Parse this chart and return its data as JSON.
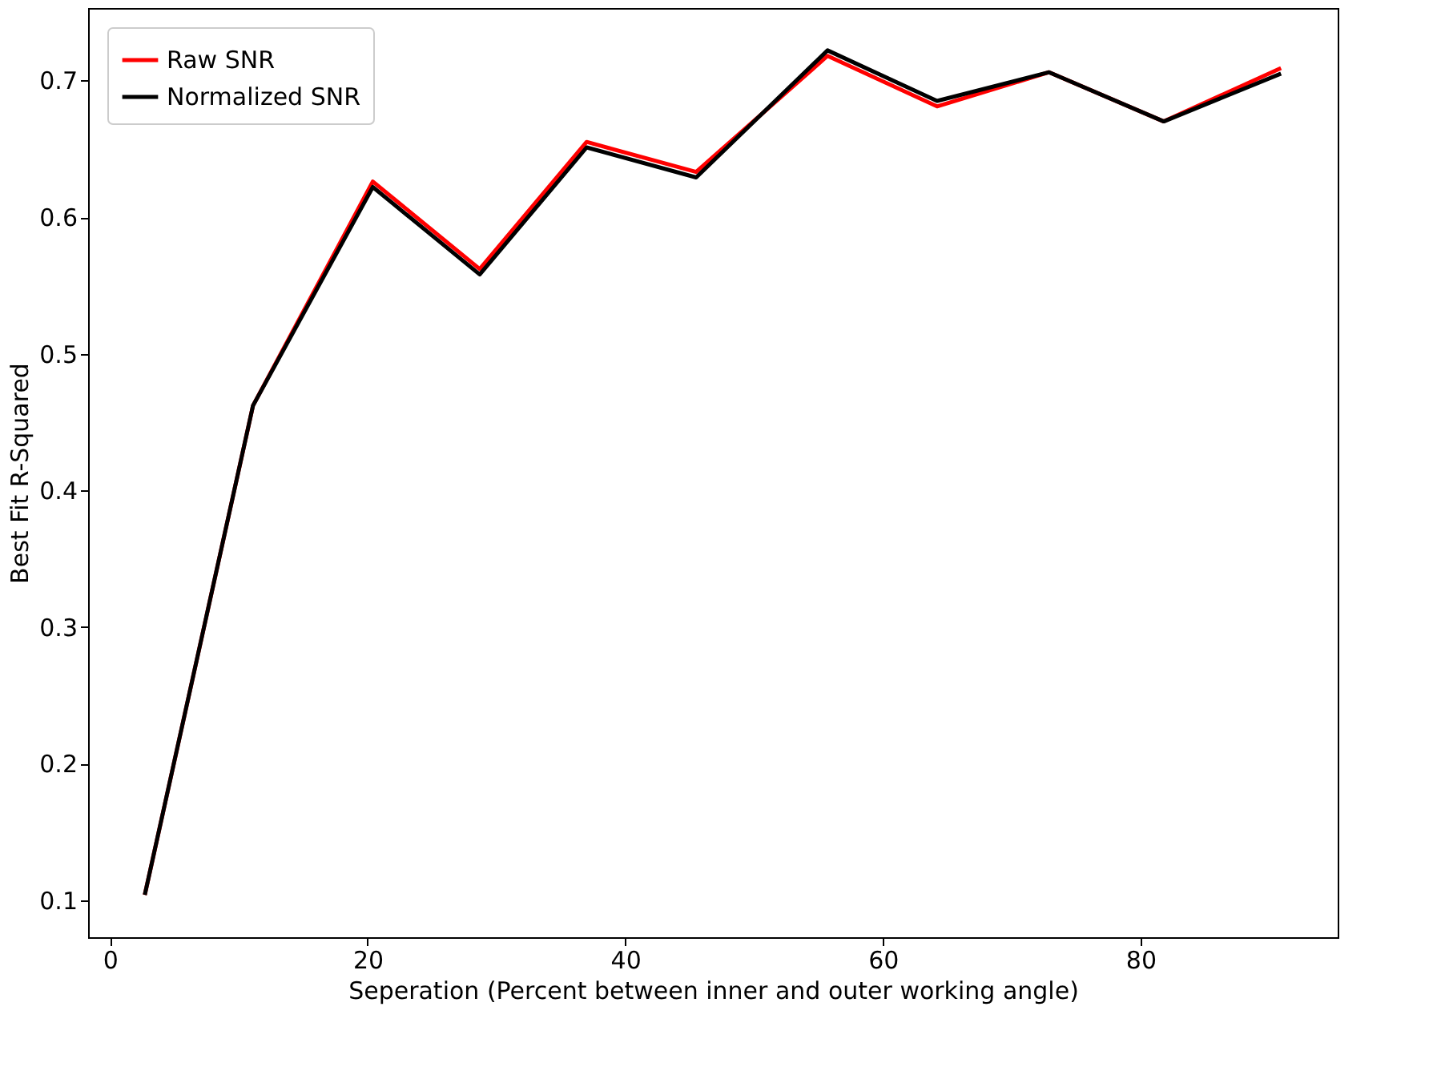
{
  "chart_data": {
    "type": "line",
    "xlabel": "Seperation (Percent between inner and outer working angle)",
    "ylabel": "Best Fit R-Squared",
    "x": [
      2.7,
      11.1,
      20.4,
      28.7,
      37.0,
      45.5,
      55.7,
      64.2,
      72.9,
      81.8,
      90.9
    ],
    "series": [
      {
        "name": "Raw SNR",
        "color": "#ff0000",
        "values": [
          0.104,
          0.462,
          0.626,
          0.562,
          0.655,
          0.633,
          0.718,
          0.681,
          0.706,
          0.67,
          0.709
        ]
      },
      {
        "name": "Normalized SNR",
        "color": "#000000",
        "values": [
          0.104,
          0.462,
          0.622,
          0.558,
          0.651,
          0.629,
          0.722,
          0.685,
          0.706,
          0.67,
          0.705
        ]
      }
    ],
    "xlim": [
      -1.7,
      95.3
    ],
    "ylim": [
      0.073,
      0.753
    ],
    "xticks": [
      0,
      20,
      40,
      60,
      80
    ],
    "yticks": [
      0.1,
      0.2,
      0.3,
      0.4,
      0.5,
      0.6,
      0.7
    ],
    "grid": false,
    "legend": "top left",
    "marker": "none",
    "line_style": "solid"
  }
}
